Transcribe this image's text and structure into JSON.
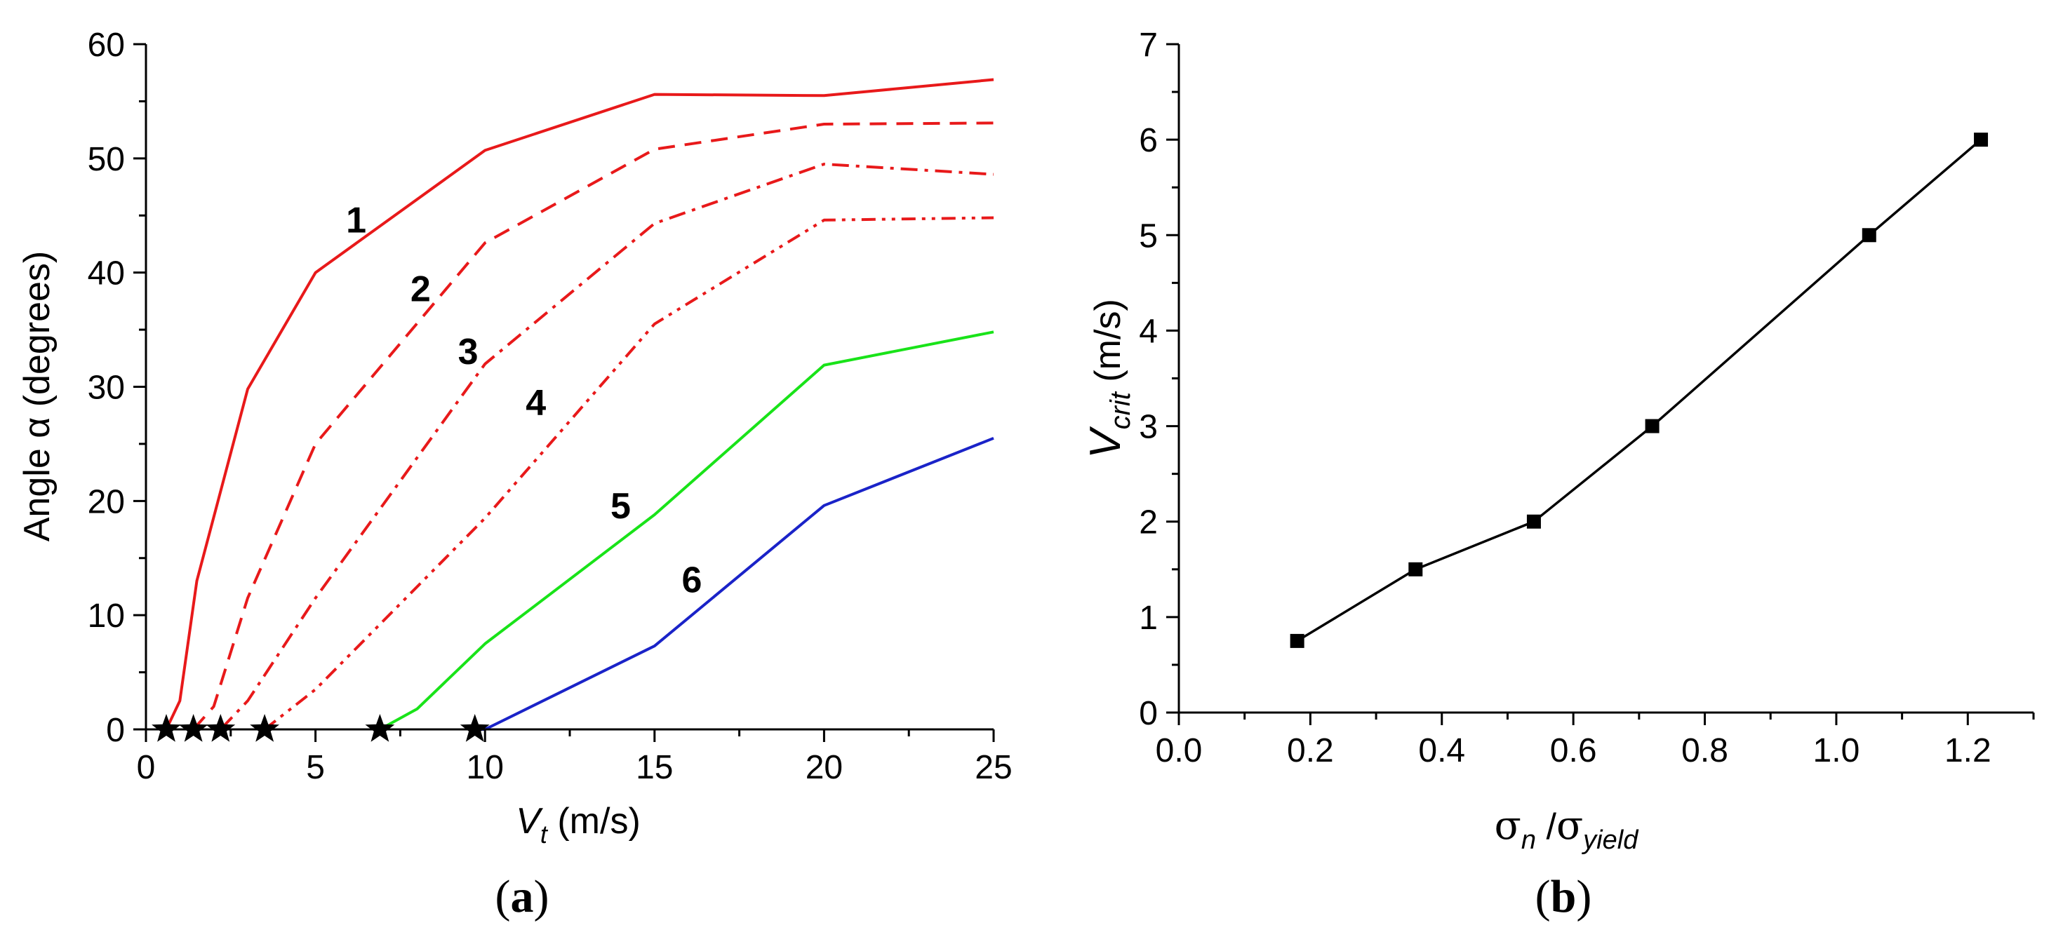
{
  "chart_data": [
    {
      "panel": "a",
      "panel_label": "(a)",
      "panel_label_parts": {
        "open": "(",
        "letter": "a",
        "close": ")"
      },
      "type": "line",
      "xlabel": {
        "main": "V",
        "sub": "t",
        "suffix": " (m/s)"
      },
      "ylabel": "Angle α (degrees)",
      "xlim": [
        0,
        25
      ],
      "ylim": [
        0,
        60
      ],
      "xticks": [
        "0",
        "5",
        "10",
        "15",
        "20",
        "25"
      ],
      "xtick_values": [
        0,
        5,
        10,
        15,
        20,
        25
      ],
      "yticks": [
        "0",
        "10",
        "20",
        "30",
        "40",
        "50",
        "60"
      ],
      "ytick_values": [
        0,
        10,
        20,
        30,
        40,
        50,
        60
      ],
      "grid": false,
      "series": [
        {
          "name": "1",
          "color": "#e8191a",
          "dash": "solid",
          "x": [
            0.6,
            1.0,
            1.5,
            3.0,
            5.0,
            10.0,
            15.0,
            20.0,
            25.0
          ],
          "y": [
            0,
            2.5,
            13.0,
            29.8,
            40.0,
            50.7,
            55.6,
            55.5,
            56.9
          ]
        },
        {
          "name": "2",
          "color": "#e8191a",
          "dash": "dashed",
          "x": [
            1.4,
            2.0,
            3.0,
            5.0,
            10.0,
            15.0,
            20.0,
            25.0
          ],
          "y": [
            0,
            2.0,
            11.5,
            25.0,
            42.6,
            50.8,
            53.0,
            53.1
          ]
        },
        {
          "name": "3",
          "color": "#e8191a",
          "dash": "dash-dot",
          "x": [
            2.2,
            3.0,
            5.0,
            10.0,
            15.0,
            20.0,
            25.0
          ],
          "y": [
            0,
            2.5,
            11.5,
            32.0,
            44.3,
            49.5,
            48.6
          ]
        },
        {
          "name": "4",
          "color": "#e8191a",
          "dash": "dash-dot-dot",
          "x": [
            3.5,
            5.0,
            10.0,
            15.0,
            20.0,
            25.0
          ],
          "y": [
            0,
            3.5,
            18.5,
            35.5,
            44.6,
            44.8
          ]
        },
        {
          "name": "5",
          "color": "#19e319",
          "dash": "solid",
          "x": [
            6.9,
            8.0,
            10.0,
            15.0,
            20.0,
            25.0
          ],
          "y": [
            0,
            1.8,
            7.5,
            18.8,
            31.9,
            34.8
          ]
        },
        {
          "name": "6",
          "color": "#1a23c8",
          "dash": "solid",
          "x": [
            9.7,
            10.0,
            15.0,
            20.0,
            25.0
          ],
          "y": [
            0,
            0,
            7.3,
            19.6,
            25.5
          ]
        }
      ],
      "curve_labels": [
        {
          "text": "1",
          "x": 6.2,
          "y": 43.5
        },
        {
          "text": "2",
          "x": 8.1,
          "y": 37.5
        },
        {
          "text": "3",
          "x": 9.5,
          "y": 32.0
        },
        {
          "text": "4",
          "x": 11.5,
          "y": 27.5
        },
        {
          "text": "5",
          "x": 14.0,
          "y": 18.5
        },
        {
          "text": "6",
          "x": 16.1,
          "y": 12.0
        }
      ],
      "star_markers": {
        "x": [
          0.6,
          1.4,
          2.2,
          3.5,
          6.9,
          9.7
        ],
        "y": 0
      }
    },
    {
      "panel": "b",
      "panel_label": "(b)",
      "panel_label_parts": {
        "open": "(",
        "letter": "b",
        "close": ")"
      },
      "type": "line",
      "xlabel": {
        "num": "σ",
        "num_sub": "n",
        "sep": " /",
        "den": "σ",
        "den_sub": "yield"
      },
      "ylabel": {
        "main": "V",
        "sub": "crit",
        "suffix": " (m/s)"
      },
      "xlim": [
        0.0,
        1.3
      ],
      "ylim": [
        0,
        7
      ],
      "xticks": [
        "0.0",
        "0.2",
        "0.4",
        "0.6",
        "0.8",
        "1.0",
        "1.2"
      ],
      "xtick_values": [
        0.0,
        0.2,
        0.4,
        0.6,
        0.8,
        1.0,
        1.2
      ],
      "yticks": [
        "0",
        "1",
        "2",
        "3",
        "4",
        "5",
        "6",
        "7"
      ],
      "ytick_values": [
        0,
        1,
        2,
        3,
        4,
        5,
        6,
        7
      ],
      "grid": false,
      "series": [
        {
          "name": "V_crit",
          "color": "#000000",
          "marker": "square",
          "x": [
            0.18,
            0.36,
            0.54,
            0.72,
            1.05,
            1.22
          ],
          "y": [
            0.75,
            1.5,
            2.0,
            3.0,
            5.0,
            6.0
          ]
        }
      ]
    }
  ]
}
